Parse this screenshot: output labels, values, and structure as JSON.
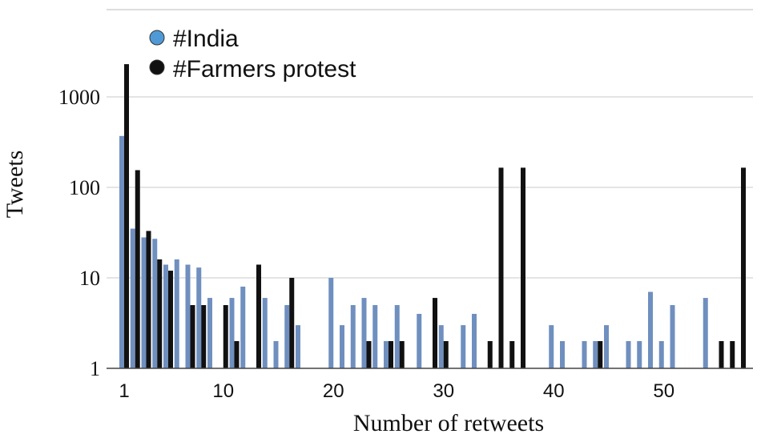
{
  "chart_data": {
    "type": "bar",
    "title": "",
    "xlabel": "Number of retweets",
    "ylabel": "Tweets",
    "y_scale": "log",
    "ylim": [
      1,
      5000
    ],
    "y_ticks": [
      1,
      10,
      100,
      1000
    ],
    "y_tick_labels": [
      "1",
      "10",
      "100",
      "1000"
    ],
    "x_ticks": [
      1,
      10,
      20,
      30,
      40,
      50
    ],
    "x_tick_labels": [
      "1",
      "10",
      "20",
      "30",
      "40",
      "50"
    ],
    "xlim": [
      0,
      58
    ],
    "grid": "horizontal",
    "legend_position": "top-left",
    "series": [
      {
        "name": "#India",
        "color": "#6f8fbf",
        "legend_color": "#4f9ad6",
        "points": [
          {
            "x": 1,
            "y": 370
          },
          {
            "x": 2,
            "y": 35
          },
          {
            "x": 3,
            "y": 28
          },
          {
            "x": 4,
            "y": 27
          },
          {
            "x": 5,
            "y": 14
          },
          {
            "x": 6,
            "y": 16
          },
          {
            "x": 7,
            "y": 14
          },
          {
            "x": 8,
            "y": 13
          },
          {
            "x": 9,
            "y": 6
          },
          {
            "x": 11,
            "y": 6
          },
          {
            "x": 12,
            "y": 8
          },
          {
            "x": 14,
            "y": 6
          },
          {
            "x": 15,
            "y": 2
          },
          {
            "x": 16,
            "y": 5
          },
          {
            "x": 17,
            "y": 3
          },
          {
            "x": 20,
            "y": 10
          },
          {
            "x": 21,
            "y": 3
          },
          {
            "x": 22,
            "y": 5
          },
          {
            "x": 23,
            "y": 6
          },
          {
            "x": 24,
            "y": 5
          },
          {
            "x": 25,
            "y": 2
          },
          {
            "x": 26,
            "y": 5
          },
          {
            "x": 28,
            "y": 4
          },
          {
            "x": 30,
            "y": 3
          },
          {
            "x": 32,
            "y": 3
          },
          {
            "x": 33,
            "y": 4
          },
          {
            "x": 40,
            "y": 3
          },
          {
            "x": 41,
            "y": 2
          },
          {
            "x": 43,
            "y": 2
          },
          {
            "x": 44,
            "y": 2
          },
          {
            "x": 45,
            "y": 3
          },
          {
            "x": 47,
            "y": 2
          },
          {
            "x": 48,
            "y": 2
          },
          {
            "x": 49,
            "y": 7
          },
          {
            "x": 50,
            "y": 2
          },
          {
            "x": 51,
            "y": 5
          },
          {
            "x": 54,
            "y": 6
          }
        ]
      },
      {
        "name": "#Farmers protest",
        "color": "#111111",
        "legend_color": "#111111",
        "points": [
          {
            "x": 1,
            "y": 2300
          },
          {
            "x": 2,
            "y": 155
          },
          {
            "x": 3,
            "y": 33
          },
          {
            "x": 4,
            "y": 16
          },
          {
            "x": 5,
            "y": 12
          },
          {
            "x": 7,
            "y": 5
          },
          {
            "x": 8,
            "y": 5
          },
          {
            "x": 10,
            "y": 5
          },
          {
            "x": 11,
            "y": 2
          },
          {
            "x": 13,
            "y": 14
          },
          {
            "x": 16,
            "y": 10
          },
          {
            "x": 23,
            "y": 2
          },
          {
            "x": 25,
            "y": 2
          },
          {
            "x": 26,
            "y": 2
          },
          {
            "x": 29,
            "y": 6
          },
          {
            "x": 30,
            "y": 2
          },
          {
            "x": 34,
            "y": 2
          },
          {
            "x": 35,
            "y": 165
          },
          {
            "x": 36,
            "y": 2
          },
          {
            "x": 37,
            "y": 165
          },
          {
            "x": 44,
            "y": 2
          },
          {
            "x": 55,
            "y": 2
          },
          {
            "x": 56,
            "y": 2
          },
          {
            "x": 57,
            "y": 165
          }
        ]
      }
    ]
  }
}
